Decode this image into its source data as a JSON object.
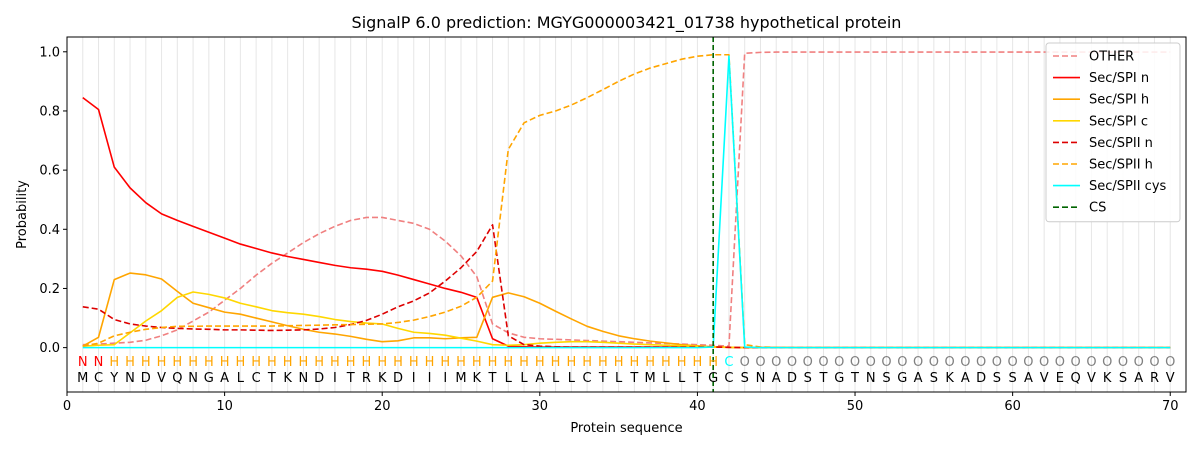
{
  "chart_data": {
    "type": "line",
    "title": "SignalP 6.0 prediction: MGYG000003421_01738 hypothetical protein",
    "xlabel": "Protein sequence",
    "ylabel": "Probability",
    "xlim": [
      0,
      71
    ],
    "ylim": [
      -0.15,
      1.05
    ],
    "xticks": [
      0,
      10,
      20,
      30,
      40,
      50,
      60,
      70
    ],
    "yticks": [
      0.0,
      0.2,
      0.4,
      0.6,
      0.8,
      1.0
    ],
    "grid": "vertical lines at each residue",
    "legend_position": "top-right",
    "sequence": [
      "M",
      "C",
      "Y",
      "N",
      "D",
      "V",
      "Q",
      "N",
      "G",
      "A",
      "L",
      "C",
      "T",
      "K",
      "N",
      "D",
      "I",
      "T",
      "R",
      "K",
      "D",
      "I",
      "I",
      "I",
      "M",
      "K",
      "T",
      "L",
      "L",
      "A",
      "L",
      "L",
      "C",
      "T",
      "L",
      "T",
      "M",
      "L",
      "L",
      "T",
      "G",
      "C",
      "S",
      "N",
      "A",
      "D",
      "S",
      "T",
      "G",
      "T",
      "N",
      "S",
      "G",
      "A",
      "S",
      "K",
      "A",
      "D",
      "S",
      "S",
      "A",
      "V",
      "E",
      "Q",
      "V",
      "K",
      "S",
      "A",
      "R",
      "V"
    ],
    "annotations": [
      "N",
      "N",
      "H",
      "H",
      "H",
      "H",
      "H",
      "H",
      "H",
      "H",
      "H",
      "H",
      "H",
      "H",
      "H",
      "H",
      "H",
      "H",
      "H",
      "H",
      "H",
      "H",
      "H",
      "H",
      "H",
      "H",
      "H",
      "H",
      "H",
      "H",
      "H",
      "H",
      "H",
      "H",
      "H",
      "H",
      "H",
      "H",
      "H",
      "H",
      "H",
      "C",
      "O",
      "O",
      "O",
      "O",
      "O",
      "O",
      "O",
      "O",
      "O",
      "O",
      "O",
      "O",
      "O",
      "O",
      "O",
      "O",
      "O",
      "O",
      "O",
      "O",
      "O",
      "O",
      "O",
      "O",
      "O",
      "O",
      "O",
      "O"
    ],
    "annotation_colors": {
      "N": "#ff0000",
      "H": "#ffa500",
      "C": "#00ffff",
      "O": "#808080"
    },
    "cleavage_site": 41,
    "series": [
      {
        "name": "OTHER",
        "color": "#f08080",
        "dash": true,
        "values": [
          0.01,
          0.012,
          0.015,
          0.018,
          0.025,
          0.04,
          0.06,
          0.09,
          0.12,
          0.16,
          0.2,
          0.245,
          0.285,
          0.32,
          0.355,
          0.385,
          0.41,
          0.43,
          0.44,
          0.44,
          0.43,
          0.42,
          0.4,
          0.36,
          0.31,
          0.24,
          0.08,
          0.05,
          0.035,
          0.03,
          0.028,
          0.026,
          0.024,
          0.022,
          0.02,
          0.018,
          0.016,
          0.014,
          0.012,
          0.01,
          0.008,
          0.005,
          0.995,
          0.998,
          0.999,
          0.999,
          0.999,
          0.999,
          0.999,
          0.999,
          0.999,
          0.999,
          0.999,
          0.999,
          0.999,
          0.999,
          0.999,
          0.999,
          0.999,
          0.999,
          0.999,
          0.999,
          0.999,
          0.999,
          0.999,
          0.999,
          0.999,
          0.999,
          0.999,
          0.999
        ]
      },
      {
        "name": "Sec/SPI n",
        "color": "#ff0000",
        "dash": false,
        "values": [
          0.845,
          0.805,
          0.61,
          0.54,
          0.49,
          0.452,
          0.43,
          0.41,
          0.39,
          0.37,
          0.35,
          0.335,
          0.32,
          0.308,
          0.298,
          0.288,
          0.278,
          0.27,
          0.265,
          0.258,
          0.245,
          0.23,
          0.215,
          0.2,
          0.187,
          0.17,
          0.03,
          0.005,
          0.003,
          0.002,
          0.002,
          0.002,
          0.002,
          0.002,
          0.002,
          0.002,
          0.002,
          0.002,
          0.002,
          0.002,
          0.002,
          0.001,
          0,
          0,
          0,
          0,
          0,
          0,
          0,
          0,
          0,
          0,
          0,
          0,
          0,
          0,
          0,
          0,
          0,
          0,
          0,
          0,
          0,
          0,
          0,
          0,
          0,
          0,
          0,
          0
        ]
      },
      {
        "name": "Sec/SPI h",
        "color": "#ffa500",
        "dash": false,
        "values": [
          0.005,
          0.035,
          0.23,
          0.252,
          0.246,
          0.232,
          0.19,
          0.15,
          0.135,
          0.12,
          0.113,
          0.1,
          0.087,
          0.074,
          0.062,
          0.052,
          0.046,
          0.038,
          0.028,
          0.02,
          0.023,
          0.033,
          0.033,
          0.03,
          0.033,
          0.035,
          0.17,
          0.185,
          0.172,
          0.15,
          0.123,
          0.097,
          0.072,
          0.055,
          0.04,
          0.03,
          0.022,
          0.016,
          0.01,
          0.006,
          0.003,
          0.001,
          0,
          0,
          0,
          0,
          0,
          0,
          0,
          0,
          0,
          0,
          0,
          0,
          0,
          0,
          0,
          0,
          0,
          0,
          0,
          0,
          0,
          0,
          0,
          0,
          0,
          0,
          0,
          0
        ]
      },
      {
        "name": "Sec/SPI c",
        "color": "#ffd700",
        "dash": false,
        "values": [
          0.005,
          0.008,
          0.01,
          0.05,
          0.09,
          0.125,
          0.17,
          0.188,
          0.18,
          0.168,
          0.15,
          0.138,
          0.125,
          0.118,
          0.113,
          0.105,
          0.095,
          0.088,
          0.083,
          0.08,
          0.065,
          0.052,
          0.048,
          0.042,
          0.032,
          0.022,
          0.01,
          0.008,
          0.01,
          0.015,
          0.018,
          0.02,
          0.02,
          0.018,
          0.015,
          0.012,
          0.01,
          0.008,
          0.006,
          0.004,
          0.002,
          0.001,
          0,
          0,
          0,
          0,
          0,
          0,
          0,
          0,
          0,
          0,
          0,
          0,
          0,
          0,
          0,
          0,
          0,
          0,
          0,
          0,
          0,
          0,
          0,
          0,
          0,
          0,
          0,
          0
        ]
      },
      {
        "name": "Sec/SPII n",
        "color": "#dd0000",
        "dash": true,
        "values": [
          0.138,
          0.13,
          0.095,
          0.08,
          0.073,
          0.068,
          0.065,
          0.063,
          0.062,
          0.06,
          0.06,
          0.059,
          0.058,
          0.059,
          0.06,
          0.063,
          0.068,
          0.078,
          0.092,
          0.113,
          0.138,
          0.158,
          0.185,
          0.225,
          0.27,
          0.325,
          0.415,
          0.04,
          0.01,
          0.005,
          0.003,
          0.002,
          0.002,
          0.002,
          0.002,
          0.002,
          0.002,
          0.002,
          0.002,
          0.002,
          0.002,
          0.001,
          0,
          0,
          0,
          0,
          0,
          0,
          0,
          0,
          0,
          0,
          0,
          0,
          0,
          0,
          0,
          0,
          0,
          0,
          0,
          0,
          0,
          0,
          0,
          0,
          0,
          0,
          0,
          0
        ]
      },
      {
        "name": "Sec/SPII h",
        "color": "#ffa500",
        "dash": true,
        "values": [
          0.005,
          0.015,
          0.04,
          0.052,
          0.062,
          0.068,
          0.072,
          0.072,
          0.073,
          0.073,
          0.073,
          0.073,
          0.073,
          0.074,
          0.075,
          0.076,
          0.077,
          0.078,
          0.079,
          0.08,
          0.085,
          0.093,
          0.105,
          0.12,
          0.14,
          0.17,
          0.225,
          0.67,
          0.76,
          0.785,
          0.8,
          0.82,
          0.845,
          0.872,
          0.9,
          0.925,
          0.945,
          0.96,
          0.975,
          0.985,
          0.99,
          0.99,
          0.01,
          0.002,
          0.001,
          0,
          0,
          0,
          0,
          0,
          0,
          0,
          0,
          0,
          0,
          0,
          0,
          0,
          0,
          0,
          0,
          0,
          0,
          0,
          0,
          0,
          0,
          0,
          0,
          0
        ]
      },
      {
        "name": "Sec/SPII cys",
        "color": "#00ffff",
        "dash": false,
        "values": [
          0,
          0,
          0,
          0,
          0,
          0,
          0,
          0,
          0,
          0,
          0,
          0,
          0,
          0,
          0,
          0,
          0,
          0,
          0,
          0,
          0,
          0,
          0,
          0,
          0,
          0,
          0,
          0,
          0,
          0,
          0,
          0,
          0,
          0,
          0,
          0,
          0,
          0,
          0,
          0,
          0.002,
          0.985,
          0.002,
          0,
          0,
          0,
          0,
          0,
          0,
          0,
          0,
          0,
          0,
          0,
          0,
          0,
          0,
          0,
          0,
          0,
          0,
          0,
          0,
          0,
          0,
          0,
          0,
          0,
          0,
          0
        ]
      },
      {
        "name": "CS",
        "color": "#006400",
        "dash": true,
        "values": []
      }
    ]
  }
}
